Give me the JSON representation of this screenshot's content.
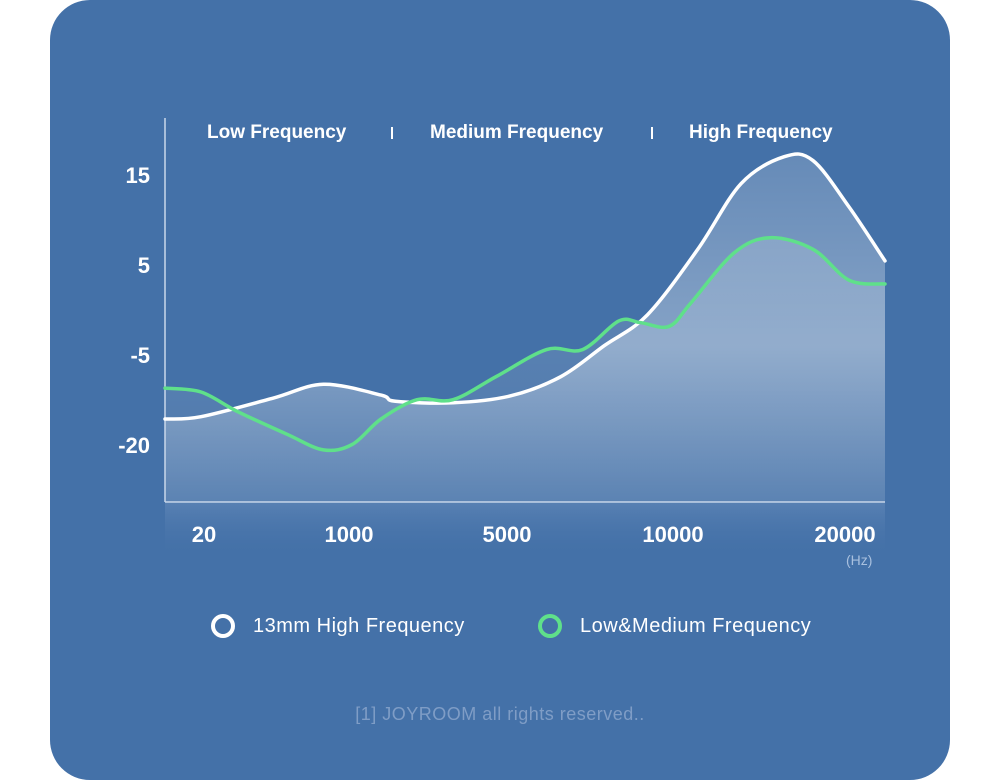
{
  "chart_data": {
    "type": "line",
    "bands": [
      "Low Frequency",
      "Medium Frequency",
      "High Frequency"
    ],
    "y_ticks": [
      "15",
      "5",
      "-5",
      "-20"
    ],
    "x_ticks": [
      "20",
      "1000",
      "5000",
      "10000",
      "20000"
    ],
    "x_unit": "(Hz)",
    "grid": false,
    "legend_position": "bottom",
    "series": [
      {
        "name": "13mm High Frequency",
        "color": "#ffffff",
        "filled": true,
        "points": [
          [
            0,
            -16.5
          ],
          [
            0.05,
            -16.2
          ],
          [
            0.15,
            -13.8
          ],
          [
            0.22,
            -12
          ],
          [
            0.3,
            -13.4
          ],
          [
            0.32,
            -14.2
          ],
          [
            0.4,
            -14.4
          ],
          [
            0.48,
            -13.5
          ],
          [
            0.55,
            -11
          ],
          [
            0.61,
            -7
          ],
          [
            0.67,
            -3
          ],
          [
            0.74,
            5.5
          ],
          [
            0.8,
            14
          ],
          [
            0.86,
            17.5
          ],
          [
            0.9,
            17
          ],
          [
            0.95,
            11
          ],
          [
            1.0,
            4
          ]
        ]
      },
      {
        "name": "Low&Medium Frequency",
        "color": "#5fe08a",
        "filled": true,
        "points": [
          [
            0,
            -12.5
          ],
          [
            0.05,
            -13
          ],
          [
            0.1,
            -15.5
          ],
          [
            0.17,
            -18.5
          ],
          [
            0.22,
            -20.5
          ],
          [
            0.26,
            -19.8
          ],
          [
            0.3,
            -16.5
          ],
          [
            0.35,
            -14
          ],
          [
            0.4,
            -14
          ],
          [
            0.46,
            -11
          ],
          [
            0.53,
            -7.5
          ],
          [
            0.58,
            -7.5
          ],
          [
            0.63,
            -3.8
          ],
          [
            0.66,
            -4
          ],
          [
            0.7,
            -4.5
          ],
          [
            0.73,
            -1.5
          ],
          [
            0.79,
            5
          ],
          [
            0.84,
            7
          ],
          [
            0.9,
            5.5
          ],
          [
            0.95,
            1.5
          ],
          [
            1.0,
            1
          ]
        ]
      }
    ]
  },
  "legend": [
    {
      "label": "13mm High Frequency",
      "color": "#ffffff"
    },
    {
      "label": "Low&Medium Frequency",
      "color": "#5fe08a"
    }
  ],
  "footer": "[1] JOYROOM all rights reserved.."
}
